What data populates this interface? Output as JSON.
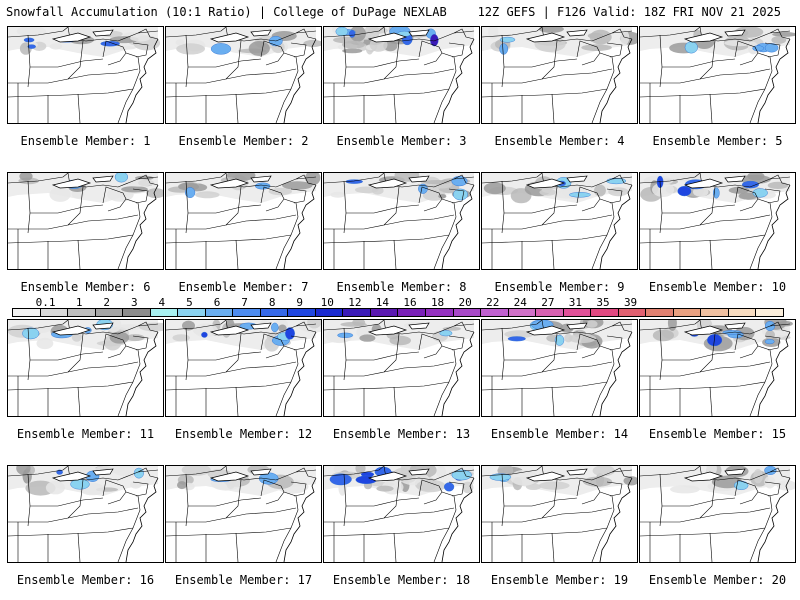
{
  "header": {
    "title": "Snowfall Accumulation (10:1 Ratio) | College of DuPage NEXLAB",
    "run_info": "12Z GEFS | F126 Valid: 18Z FRI NOV 21 2025"
  },
  "colorbar": {
    "labels": [
      "0.1",
      "1",
      "2",
      "3",
      "4",
      "5",
      "6",
      "7",
      "8",
      "9",
      "10",
      "12",
      "14",
      "16",
      "18",
      "20",
      "22",
      "24",
      "27",
      "31",
      "35",
      "39"
    ],
    "colors": [
      "#f2f2f2",
      "#d9d9d9",
      "#bfbfbf",
      "#a6a6a6",
      "#8c8c8c",
      "#a8f0f0",
      "#8ad2f0",
      "#6aaef0",
      "#4d8cf0",
      "#3568e8",
      "#1f46e0",
      "#1a2ad0",
      "#3a1ab8",
      "#5a18b0",
      "#7a20b8",
      "#9430c0",
      "#a848c8",
      "#c060d0",
      "#d070c8",
      "#d860b0",
      "#e05098",
      "#e04880",
      "#e06070",
      "#e08070",
      "#e8a080",
      "#f0c0a0",
      "#f8dcc0",
      "#fcefdc"
    ]
  },
  "panels": [
    {
      "label": "Ensemble Member: 1",
      "intensity": 2
    },
    {
      "label": "Ensemble Member: 2",
      "intensity": 1
    },
    {
      "label": "Ensemble Member: 3",
      "intensity": 4
    },
    {
      "label": "Ensemble Member: 4",
      "intensity": 1
    },
    {
      "label": "Ensemble Member: 5",
      "intensity": 2
    },
    {
      "label": "Ensemble Member: 6",
      "intensity": 1
    },
    {
      "label": "Ensemble Member: 7",
      "intensity": 1
    },
    {
      "label": "Ensemble Member: 8",
      "intensity": 2
    },
    {
      "label": "Ensemble Member: 9",
      "intensity": 2
    },
    {
      "label": "Ensemble Member: 10",
      "intensity": 3
    },
    {
      "label": "Ensemble Member: 11",
      "intensity": 2
    },
    {
      "label": "Ensemble Member: 12",
      "intensity": 3
    },
    {
      "label": "Ensemble Member: 13",
      "intensity": 1
    },
    {
      "label": "Ensemble Member: 14",
      "intensity": 2
    },
    {
      "label": "Ensemble Member: 15",
      "intensity": 3
    },
    {
      "label": "Ensemble Member: 16",
      "intensity": 2
    },
    {
      "label": "Ensemble Member: 17",
      "intensity": 1
    },
    {
      "label": "Ensemble Member: 18",
      "intensity": 4
    },
    {
      "label": "Ensemble Member: 19",
      "intensity": 1
    },
    {
      "label": "Ensemble Member: 20",
      "intensity": 1
    }
  ]
}
